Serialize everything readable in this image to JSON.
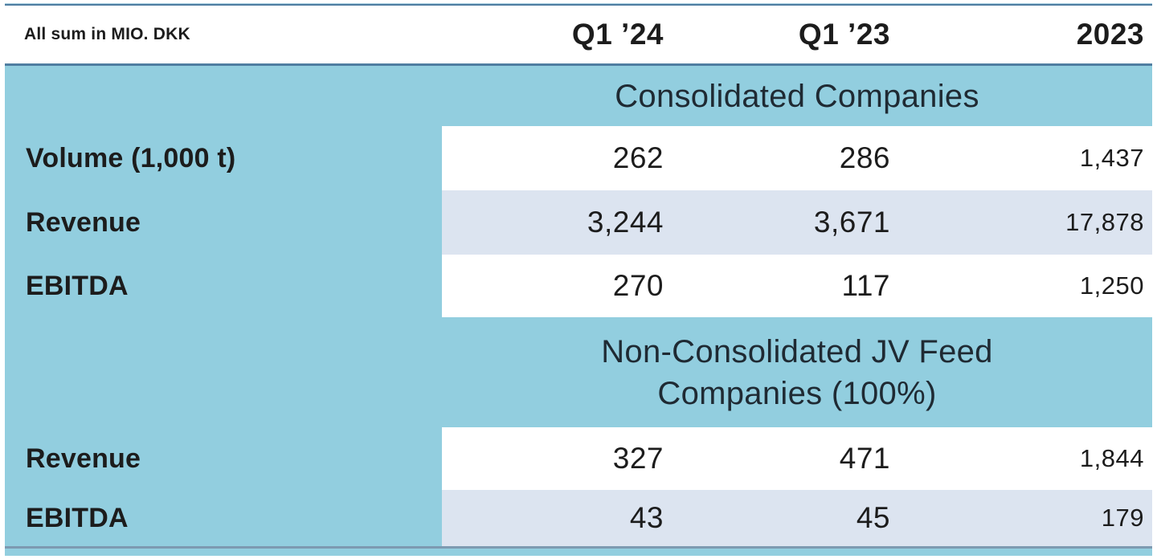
{
  "chart_data": {
    "type": "table",
    "unit_note": "All sum in MIO. DKK",
    "columns": [
      "Q1 ’24",
      "Q1 ’23",
      "2023"
    ],
    "sections": [
      {
        "title": "Consolidated Companies",
        "title_lines": [
          "Consolidated Companies"
        ],
        "rows": [
          {
            "label": "Volume (1,000 t)",
            "values": [
              "262",
              "286",
              "1,437"
            ]
          },
          {
            "label": "Revenue",
            "values": [
              "3,244",
              "3,671",
              "17,878"
            ]
          },
          {
            "label": "EBITDA",
            "values": [
              "270",
              "117",
              "1,250"
            ]
          }
        ]
      },
      {
        "title": "Non-Consolidated JV Feed Companies (100%)",
        "title_lines": [
          "Non-Consolidated JV Feed",
          "Companies (100%)"
        ],
        "rows": [
          {
            "label": "Revenue",
            "values": [
              "327",
              "471",
              "1,844"
            ]
          },
          {
            "label": "EBITDA",
            "values": [
              "43",
              "45",
              "179"
            ]
          }
        ]
      }
    ]
  },
  "colors": {
    "table_fill": "#92cedf",
    "row_stripe": "#dce4f0",
    "rule": "#4f7ea1",
    "bottom_rule": "#7d9ab1",
    "text": "#1c1c1c"
  }
}
